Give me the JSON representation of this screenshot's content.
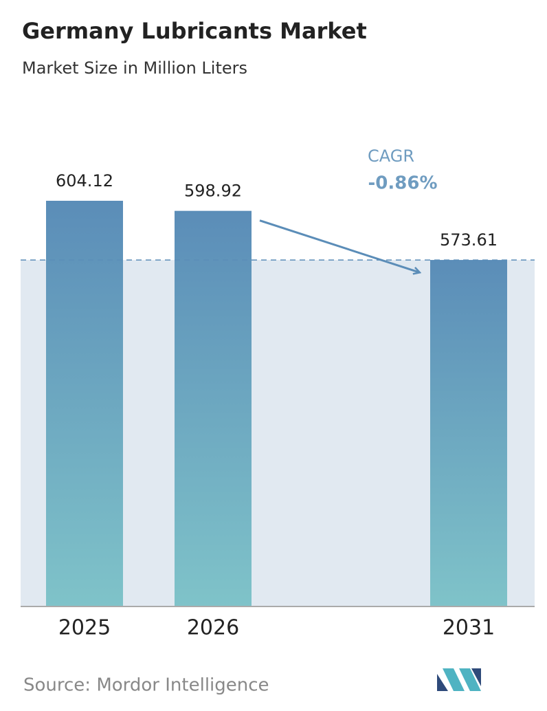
{
  "chart_data": {
    "type": "bar",
    "title": "Germany Lubricants Market",
    "subtitle": "Market Size in Million Liters",
    "categories": [
      "2025",
      "2026",
      "2031"
    ],
    "values": [
      604.12,
      598.92,
      573.61
    ],
    "ylim": [
      395,
      605
    ],
    "annotations": {
      "cagr_label": "CAGR",
      "cagr_value": "-0.86%"
    },
    "source": "Source: Mordor Intelligence"
  }
}
